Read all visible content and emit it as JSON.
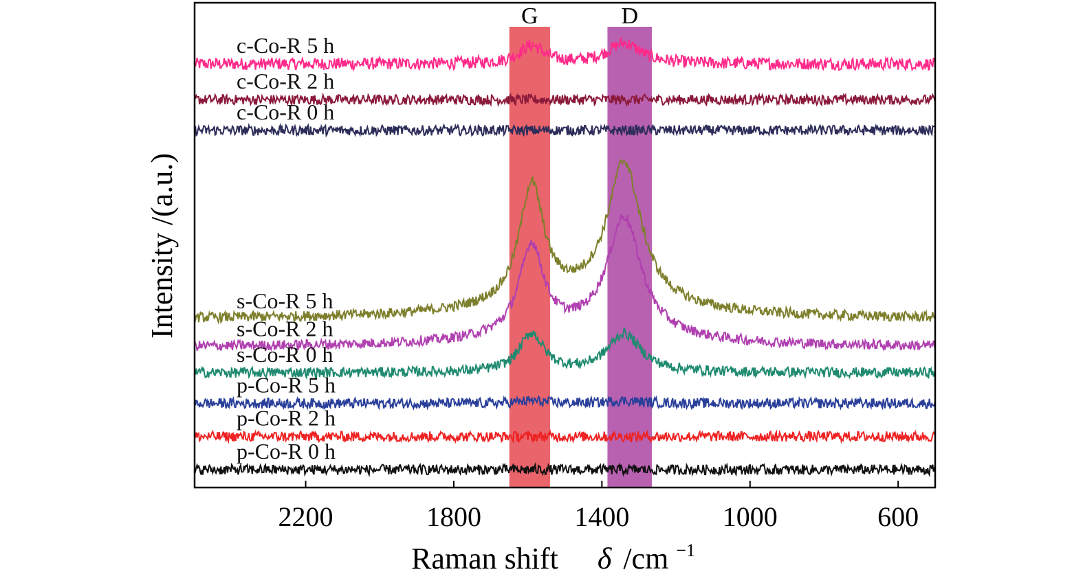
{
  "chart_data": {
    "type": "line",
    "title": "",
    "xlabel": "Raman shift",
    "xlabel_symbol": "δ",
    "xlabel_unit": "/cm",
    "xlabel_unit_sup": "−1",
    "ylabel": "Intensity /(a.u.)",
    "xlim": [
      2500,
      500
    ],
    "x_reversed": true,
    "x_ticks": [
      2200,
      1800,
      1400,
      1000,
      600
    ],
    "x_tick_labels": [
      "2200",
      "1800",
      "1400",
      "1000",
      "600"
    ],
    "bands": [
      {
        "label": "G",
        "from": 1650,
        "to": 1540,
        "color": "#e8535b"
      },
      {
        "label": "D",
        "from": 1385,
        "to": 1265,
        "color": "#b150a8"
      }
    ],
    "series": [
      {
        "name": "c-Co-R 5 h",
        "color": "#ff2a8a",
        "offset": 8.3,
        "g_peak": 0.35,
        "d_peak": 0.4,
        "bg_high": 0.0,
        "bg_low": 0.0,
        "noise": 0.12
      },
      {
        "name": "c-Co-R 2 h",
        "color": "#8b1a3a",
        "offset": 7.6,
        "g_peak": 0.0,
        "d_peak": 0.0,
        "bg_high": 0.0,
        "bg_low": 0.0,
        "noise": 0.1
      },
      {
        "name": "c-Co-R 0 h",
        "color": "#2d2d5a",
        "offset": 7.0,
        "g_peak": 0.0,
        "d_peak": 0.0,
        "bg_high": 0.0,
        "bg_low": 0.0,
        "noise": 0.1
      },
      {
        "name": "s-Co-R 5 h",
        "color": "#7d7f2c",
        "offset": 3.3,
        "g_peak": 2.3,
        "d_peak": 2.75,
        "bg_high": 0.05,
        "bg_low": 0.0,
        "noise": 0.1
      },
      {
        "name": "s-Co-R  2 h",
        "color": "#b040b0",
        "offset": 2.75,
        "g_peak": 1.75,
        "d_peak": 2.3,
        "bg_high": 0.1,
        "bg_low": 0.0,
        "noise": 0.1
      },
      {
        "name": "s-Co-R 0 h",
        "color": "#1f8a70",
        "offset": 2.25,
        "g_peak": 0.75,
        "d_peak": 0.75,
        "bg_high": 0.0,
        "bg_low": 0.0,
        "noise": 0.1
      },
      {
        "name": "p-Co-R 5 h",
        "color": "#2a3f9a",
        "offset": 1.65,
        "g_peak": 0.05,
        "d_peak": 0.05,
        "bg_high": 0.0,
        "bg_low": 0.0,
        "noise": 0.1
      },
      {
        "name": "p-Co-R 2 h",
        "color": "#ee2222",
        "offset": 1.0,
        "g_peak": 0.0,
        "d_peak": 0.0,
        "bg_high": 0.0,
        "bg_low": 0.0,
        "noise": 0.1
      },
      {
        "name": "p-Co-R 0 h",
        "color": "#111111",
        "offset": 0.35,
        "g_peak": 0.0,
        "d_peak": 0.0,
        "bg_high": 0.0,
        "bg_low": 0.0,
        "noise": 0.1
      }
    ],
    "peak_positions": {
      "G": 1590,
      "D": 1340
    },
    "ylim": [
      0,
      9.5
    ],
    "grid": false,
    "legend": "inline-left"
  }
}
